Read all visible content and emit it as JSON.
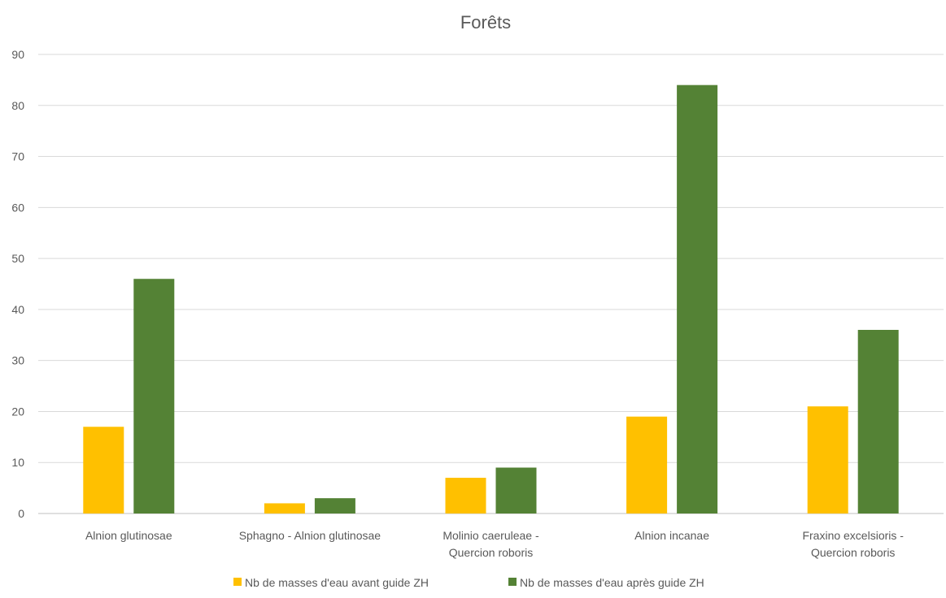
{
  "chart_data": {
    "type": "bar",
    "title": "Forêts",
    "xlabel": "",
    "ylabel": "",
    "categories": [
      [
        "Alnion glutinosae"
      ],
      [
        "Sphagno - Alnion glutinosae"
      ],
      [
        "Molinio caeruleae -",
        "Quercion roboris"
      ],
      [
        "Alnion incanae"
      ],
      [
        "Fraxino excelsioris -",
        "Quercion roboris"
      ]
    ],
    "series": [
      {
        "name": "Nb de masses d'eau avant guide ZH",
        "color": "#FFC000",
        "values": [
          17,
          2,
          7,
          19,
          21
        ]
      },
      {
        "name": "Nb de masses d'eau après guide ZH",
        "color": "#548235",
        "values": [
          46,
          3,
          9,
          84,
          36
        ]
      }
    ],
    "ylim": [
      0,
      90
    ],
    "yticks": [
      0,
      10,
      20,
      30,
      40,
      50,
      60,
      70,
      80,
      90
    ],
    "grid": true,
    "legend_position": "bottom"
  }
}
